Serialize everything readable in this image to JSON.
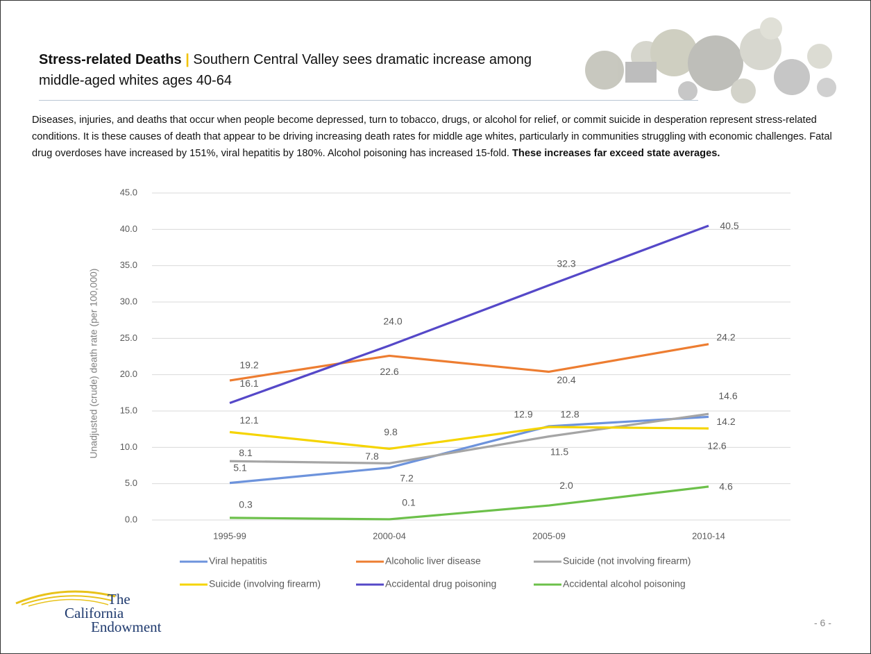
{
  "header": {
    "title": "Stress-related Deaths",
    "separator": "|",
    "subtitle": "Southern Central Valley sees dramatic increase among middle-aged whites ages 40-64"
  },
  "body": {
    "text": "Diseases, injuries, and deaths that occur when people become depressed, turn to tobacco, drugs, or alcohol for relief, or commit suicide in desperation represent stress-related conditions.  It is these causes of death that appear to be driving increasing death rates for middle age whites, particularly in communities struggling with economic challenges. Fatal drug overdoses have increased by 151%, viral hepatitis by 180%. Alcohol poisoning has increased 15-fold.",
    "bold": "These increases far exceed state averages."
  },
  "chart_data": {
    "type": "line",
    "y_label": "Unadjusted (crude) death rate (per 100,000)",
    "categories": [
      "1995-99",
      "2000-04",
      "2005-09",
      "2010-14"
    ],
    "ylim": [
      0,
      45
    ],
    "yticks": [
      {
        "value": 0,
        "label": "0.0"
      },
      {
        "value": 5,
        "label": "5.0"
      },
      {
        "value": 10,
        "label": "10.0"
      },
      {
        "value": 15,
        "label": "15.0"
      },
      {
        "value": 20,
        "label": "20.0"
      },
      {
        "value": 25,
        "label": "25.0"
      },
      {
        "value": 30,
        "label": "30.0"
      },
      {
        "value": 35,
        "label": "35.0"
      },
      {
        "value": 40,
        "label": "40.0"
      },
      {
        "value": 45,
        "label": "45.0"
      }
    ],
    "grid": true,
    "legend": "bottom",
    "series": [
      {
        "name": "Viral hepatitis",
        "color": "#6d93dc",
        "values": [
          5.1,
          7.2,
          12.9,
          14.2
        ],
        "value_labels": [
          "5.1",
          "7.2",
          "12.9",
          "14.2"
        ]
      },
      {
        "name": "Alcoholic liver disease",
        "color": "#ed7d31",
        "values": [
          19.2,
          22.6,
          20.4,
          24.2
        ],
        "value_labels": [
          "19.2",
          "22.6",
          "20.4",
          "24.2"
        ]
      },
      {
        "name": "Suicide (not involving firearm)",
        "color": "#a5a5a5",
        "values": [
          8.1,
          7.8,
          11.5,
          14.6
        ],
        "value_labels": [
          "8.1",
          "7.8",
          "11.5",
          "14.6"
        ]
      },
      {
        "name": "Suicide (involving firearm)",
        "color": "#f5d400",
        "values": [
          12.1,
          9.8,
          12.8,
          12.6
        ],
        "value_labels": [
          "12.1",
          "9.8",
          "12.8",
          "12.6"
        ]
      },
      {
        "name": "Accidental drug poisoning",
        "color": "#5548c8",
        "values": [
          16.1,
          24.0,
          32.3,
          40.5
        ],
        "value_labels": [
          "16.1",
          "24.0",
          "32.3",
          "40.5"
        ]
      },
      {
        "name": "Accidental alcohol poisoning",
        "color": "#6cc04a",
        "values": [
          0.3,
          0.1,
          2.0,
          4.6
        ],
        "value_labels": [
          "0.3",
          "0.1",
          "2.0",
          "4.6"
        ]
      }
    ]
  },
  "logo": {
    "line1": "The",
    "line2": "California",
    "line3": "Endowment"
  },
  "page_number": "- 6 -"
}
